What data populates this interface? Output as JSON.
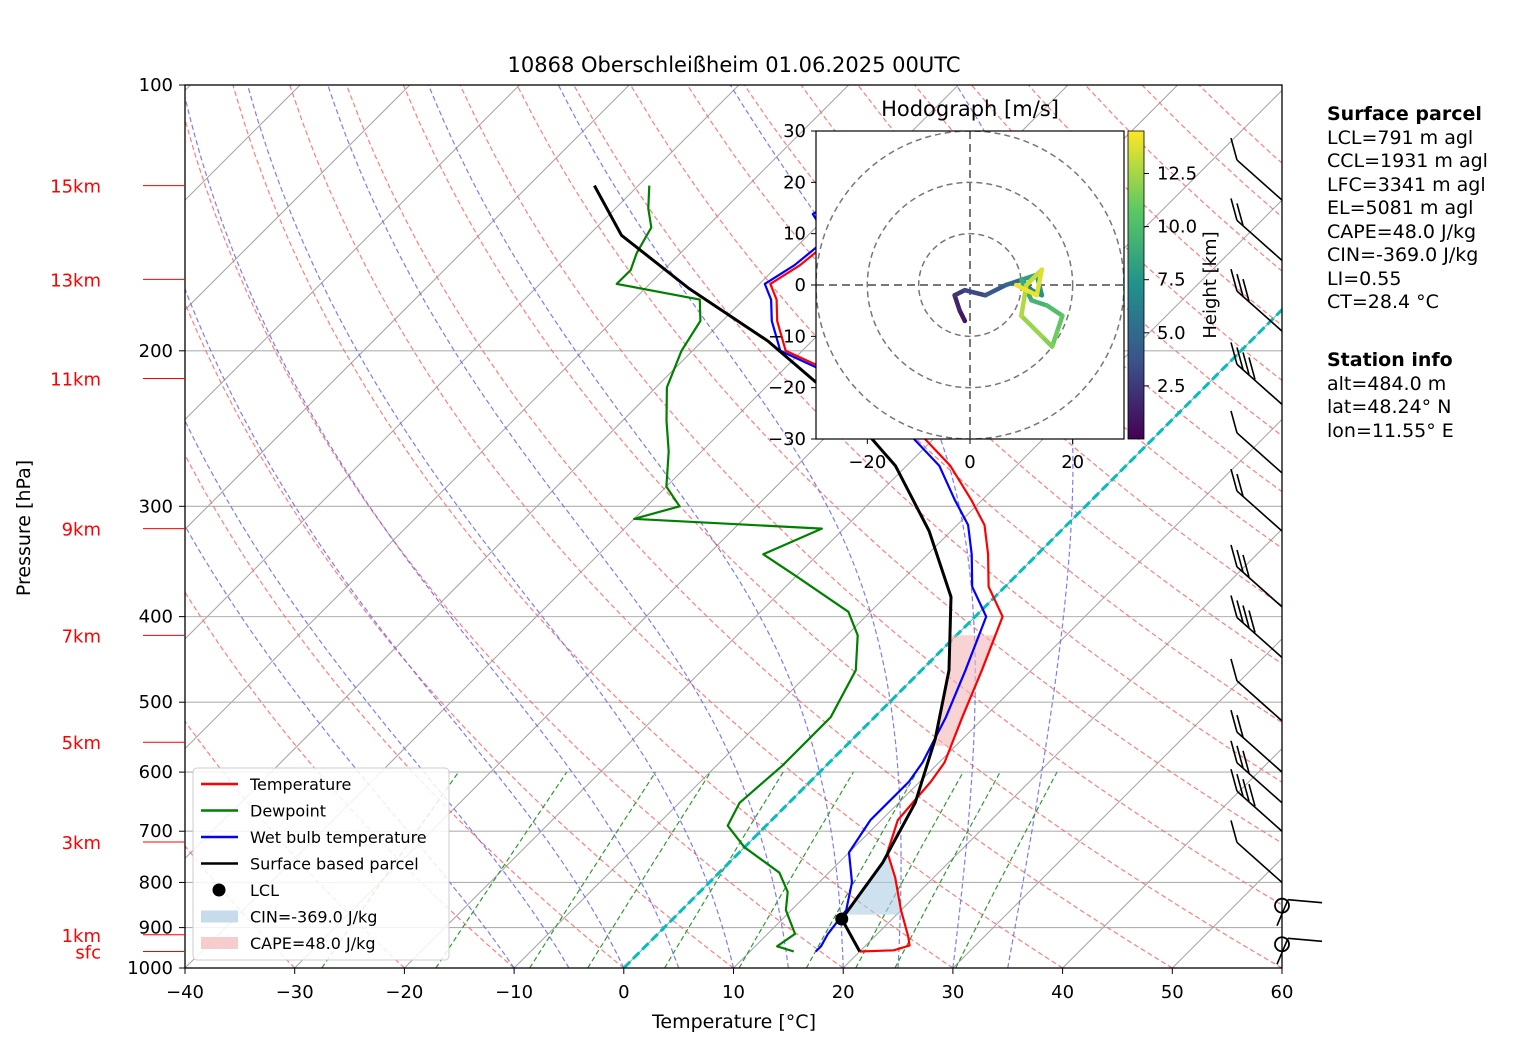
{
  "title": "10868 Oberschleißheim 01.06.2025 00UTC",
  "colors": {
    "temperature": "#ff0000",
    "dewpoint": "#008000",
    "wetbulb": "#0000ff",
    "parcel": "#000000",
    "isotherm_zero": "#00bfbf",
    "dry_adiabat": "#ff6666",
    "moist_adiabat": "#6666ee",
    "mixing_ratio": "#339933",
    "cin_fill": "#aecde3",
    "cape_fill": "#f4b6b6",
    "height_labels": "#ff0000"
  },
  "chart_data": [
    {
      "type": "line",
      "subtype": "skew-T log-p",
      "xlabel": "Temperature [°C]",
      "ylabel": "Pressure [hPa]",
      "xlim": [
        -40,
        60
      ],
      "ylim": [
        1000,
        100
      ],
      "y_scale": "log",
      "xticks": [
        -40,
        -30,
        -20,
        -10,
        0,
        10,
        20,
        30,
        40,
        50,
        60
      ],
      "yticks": [
        100,
        200,
        300,
        400,
        500,
        600,
        700,
        800,
        900,
        1000
      ],
      "height_labels": [
        {
          "label": "15km",
          "p": 130
        },
        {
          "label": "13km",
          "p": 166
        },
        {
          "label": "11km",
          "p": 215
        },
        {
          "label": "9km",
          "p": 318
        },
        {
          "label": "7km",
          "p": 420
        },
        {
          "label": "5km",
          "p": 555
        },
        {
          "label": "3km",
          "p": 720
        },
        {
          "label": "1km",
          "p": 917
        },
        {
          "label": "sfc",
          "p": 958
        }
      ],
      "grid": true,
      "legend_placement": "lower-left",
      "series": [
        {
          "name": "Temperature",
          "points": [
            [
              20.0,
              958
            ],
            [
              23.0,
              955
            ],
            [
              24.0,
              943
            ],
            [
              23.0,
              920
            ],
            [
              20.0,
              860
            ],
            [
              16.5,
              790
            ],
            [
              13.5,
              740
            ],
            [
              11.5,
              680
            ],
            [
              11.0,
              615
            ],
            [
              10.5,
              585
            ],
            [
              8.0,
              520
            ],
            [
              5.5,
              460
            ],
            [
              2.5,
              400
            ],
            [
              -1.5,
              370
            ],
            [
              -4.5,
              340
            ],
            [
              -7.5,
              315
            ],
            [
              -11.0,
              295
            ],
            [
              -16.0,
              270
            ],
            [
              -24.0,
              240
            ],
            [
              -33.5,
              215
            ],
            [
              -41.5,
              200
            ],
            [
              -45.0,
              185
            ],
            [
              -47.0,
              175
            ],
            [
              -49.0,
              168
            ],
            [
              -48.0,
              160
            ],
            [
              -47.5,
              150
            ],
            [
              -49.0,
              145
            ],
            [
              -51.0,
              140
            ],
            [
              -50.0,
              135
            ],
            [
              -51.0,
              130
            ]
          ]
        },
        {
          "name": "Dewpoint",
          "points": [
            [
              14.0,
              958
            ],
            [
              12.0,
              945
            ],
            [
              12.5,
              915
            ],
            [
              9.5,
              860
            ],
            [
              8.0,
              820
            ],
            [
              5.5,
              780
            ],
            [
              0.0,
              730
            ],
            [
              -3.5,
              690
            ],
            [
              -4.5,
              650
            ],
            [
              -4.0,
              590
            ],
            [
              -4.0,
              520
            ],
            [
              -6.0,
              460
            ],
            [
              -9.0,
              420
            ],
            [
              -12.0,
              395
            ],
            [
              -20.0,
              360
            ],
            [
              -25.0,
              340
            ],
            [
              -22.0,
              318
            ],
            [
              -40.0,
              310
            ],
            [
              -37.0,
              300
            ],
            [
              -40.0,
              285
            ],
            [
              -43.0,
              260
            ],
            [
              -46.0,
              240
            ],
            [
              -49.0,
              220
            ],
            [
              -51.0,
              200
            ],
            [
              -52.0,
              185
            ],
            [
              -54.0,
              175
            ],
            [
              -63.0,
              168
            ],
            [
              -63.0,
              162
            ],
            [
              -64.0,
              155
            ],
            [
              -65.0,
              145
            ],
            [
              -67.0,
              138
            ],
            [
              -69.0,
              130
            ]
          ]
        },
        {
          "name": "Wet bulb temperature",
          "points": [
            [
              16.0,
              958
            ],
            [
              16.0,
              945
            ],
            [
              15.5,
              915
            ],
            [
              15.0,
              860
            ],
            [
              13.0,
              800
            ],
            [
              10.0,
              740
            ],
            [
              9.0,
              680
            ],
            [
              9.0,
              615
            ],
            [
              8.5,
              585
            ],
            [
              6.5,
              520
            ],
            [
              4.0,
              460
            ],
            [
              1.0,
              400
            ],
            [
              -3.0,
              370
            ],
            [
              -6.0,
              340
            ],
            [
              -9.0,
              315
            ],
            [
              -12.5,
              295
            ],
            [
              -17.0,
              270
            ],
            [
              -25.0,
              240
            ],
            [
              -34.0,
              215
            ],
            [
              -42.0,
              200
            ],
            [
              -45.5,
              185
            ],
            [
              -47.5,
              175
            ],
            [
              -49.5,
              168
            ],
            [
              -48.5,
              160
            ],
            [
              -48.0,
              150
            ],
            [
              -49.5,
              145
            ],
            [
              -51.5,
              140
            ],
            [
              -50.5,
              135
            ],
            [
              -51.5,
              130
            ]
          ]
        },
        {
          "name": "Surface based parcel",
          "points": [
            [
              20.0,
              958
            ],
            [
              15.4,
              880
            ],
            [
              14.0,
              760
            ],
            [
              11.5,
              650
            ],
            [
              7.5,
              550
            ],
            [
              2.5,
              460
            ],
            [
              -4.0,
              380
            ],
            [
              -12.0,
              320
            ],
            [
              -21.0,
              270
            ],
            [
              -31.5,
              230
            ],
            [
              -44.0,
              195
            ],
            [
              -56.0,
              170
            ],
            [
              -67.0,
              148
            ],
            [
              -74.0,
              130
            ]
          ]
        },
        {
          "name": "LCL",
          "points": [
            [
              15.4,
              880
            ]
          ]
        }
      ],
      "shading": [
        {
          "name": "CIN=-369.0 J/kg",
          "p_range": [
            870,
            700
          ]
        },
        {
          "name": "CAPE=48.0 J/kg",
          "p_range": [
            560,
            420
          ]
        }
      ],
      "wind_barbs_hpa": [
        135,
        158,
        190,
        230,
        275,
        320,
        390,
        445,
        525,
        600,
        650,
        700,
        800,
        850,
        940
      ]
    },
    {
      "type": "line",
      "subtype": "hodograph",
      "title": "Hodograph [m/s]",
      "xlim": [
        -30,
        30
      ],
      "ylim": [
        -30,
        30
      ],
      "xticks": [
        -20,
        0,
        20
      ],
      "yticks": [
        -30,
        -20,
        -10,
        0,
        10,
        20,
        30
      ],
      "rings_ms": [
        10,
        20,
        30
      ],
      "colorbar": {
        "label": "Height [km]",
        "ticks": [
          "2.5",
          "5.0",
          "7.5",
          "10.0",
          "12.5"
        ],
        "range_km": [
          0,
          14.5
        ]
      },
      "points_uv_km": [
        [
          -1,
          -7,
          0.5
        ],
        [
          -2,
          -5,
          1.2
        ],
        [
          -3,
          -2,
          2.0
        ],
        [
          -1,
          -1,
          2.8
        ],
        [
          3,
          -2,
          3.5
        ],
        [
          7,
          0,
          4.5
        ],
        [
          10,
          1,
          5.5
        ],
        [
          12,
          -1,
          6.2
        ],
        [
          14,
          -2,
          7.0
        ],
        [
          13,
          2,
          7.8
        ],
        [
          10,
          1,
          8.5
        ],
        [
          12,
          -3,
          9.2
        ],
        [
          15,
          -4,
          9.8
        ],
        [
          18,
          -6,
          10.5
        ],
        [
          17,
          -9,
          11.0
        ],
        [
          16,
          -12,
          11.5
        ],
        [
          14,
          -10,
          12.0
        ],
        [
          10,
          -6,
          12.5
        ],
        [
          11,
          0,
          13.0
        ],
        [
          14,
          3,
          13.5
        ],
        [
          13,
          -2,
          14.0
        ],
        [
          9,
          0,
          14.3
        ]
      ]
    }
  ],
  "legend": {
    "items": [
      {
        "label": "Temperature",
        "kind": "line",
        "color": "#ff0000"
      },
      {
        "label": "Dewpoint",
        "kind": "line",
        "color": "#008000"
      },
      {
        "label": "Wet bulb temperature",
        "kind": "line",
        "color": "#0000ff"
      },
      {
        "label": "Surface based parcel",
        "kind": "line",
        "color": "#000000"
      },
      {
        "label": "LCL",
        "kind": "dot",
        "color": "#000000"
      },
      {
        "label": "CIN=-369.0 J/kg",
        "kind": "patch",
        "color": "#aecde3"
      },
      {
        "label": "CAPE=48.0 J/kg",
        "kind": "patch",
        "color": "#f4b6b6"
      }
    ]
  },
  "surface_parcel": {
    "heading": "Surface parcel",
    "lines": [
      "LCL=791 m agl",
      "CCL=1931 m agl",
      "LFC=3341 m agl",
      "EL=5081 m agl",
      "CAPE=48.0 J/kg",
      "CIN=-369.0 J/kg",
      "LI=0.55",
      "CT=28.4 °C"
    ]
  },
  "station_info": {
    "heading": "Station info",
    "lines": [
      "alt=484.0 m",
      "lat=48.24° N",
      "lon=11.55° E"
    ]
  }
}
